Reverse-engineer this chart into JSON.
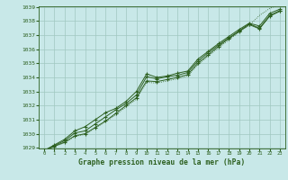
{
  "title": "Graphe pression niveau de la mer (hPa)",
  "background_color": "#c8e8e8",
  "grid_color": "#a0c8c0",
  "line_color": "#2d6020",
  "marker_color": "#2d6020",
  "x_values": [
    0,
    1,
    2,
    3,
    4,
    5,
    6,
    7,
    8,
    9,
    10,
    11,
    12,
    13,
    14,
    15,
    16,
    17,
    18,
    19,
    20,
    21,
    22,
    23
  ],
  "series1": [
    1028.8,
    1029.2,
    1029.6,
    1030.2,
    1030.5,
    1031.0,
    1031.5,
    1031.8,
    1032.3,
    1033.0,
    1034.25,
    1034.0,
    1034.1,
    1034.3,
    1034.45,
    1035.3,
    1035.85,
    1036.4,
    1036.9,
    1037.4,
    1037.85,
    1037.65,
    1038.55,
    1038.85
  ],
  "series2": [
    1028.8,
    1029.15,
    1029.5,
    1030.05,
    1030.2,
    1030.7,
    1031.2,
    1031.7,
    1032.15,
    1032.75,
    1034.05,
    1033.9,
    1034.05,
    1034.15,
    1034.35,
    1035.15,
    1035.75,
    1036.3,
    1036.8,
    1037.3,
    1037.8,
    1037.5,
    1038.4,
    1038.75
  ],
  "series3": [
    1028.8,
    1029.1,
    1029.4,
    1029.85,
    1030.0,
    1030.45,
    1030.9,
    1031.45,
    1032.0,
    1032.55,
    1033.75,
    1033.7,
    1033.85,
    1034.0,
    1034.2,
    1035.0,
    1035.6,
    1036.2,
    1036.75,
    1037.25,
    1037.75,
    1037.45,
    1038.35,
    1038.7
  ],
  "series4_dotted": [
    1028.8,
    1029.1,
    1029.35,
    1029.8,
    1029.95,
    1030.4,
    1030.85,
    1031.35,
    1031.9,
    1032.45,
    1033.65,
    1033.6,
    1033.75,
    1033.9,
    1034.1,
    1034.9,
    1035.5,
    1036.1,
    1036.65,
    1037.2,
    1037.7,
    1038.4,
    1038.9,
    1039.2
  ],
  "ylim": [
    1029,
    1039
  ],
  "xlim": [
    -0.5,
    23.5
  ],
  "yticks": [
    1029,
    1030,
    1031,
    1032,
    1033,
    1034,
    1035,
    1036,
    1037,
    1038,
    1039
  ],
  "xticks": [
    0,
    1,
    2,
    3,
    4,
    5,
    6,
    7,
    8,
    9,
    10,
    11,
    12,
    13,
    14,
    15,
    16,
    17,
    18,
    19,
    20,
    21,
    22,
    23
  ]
}
